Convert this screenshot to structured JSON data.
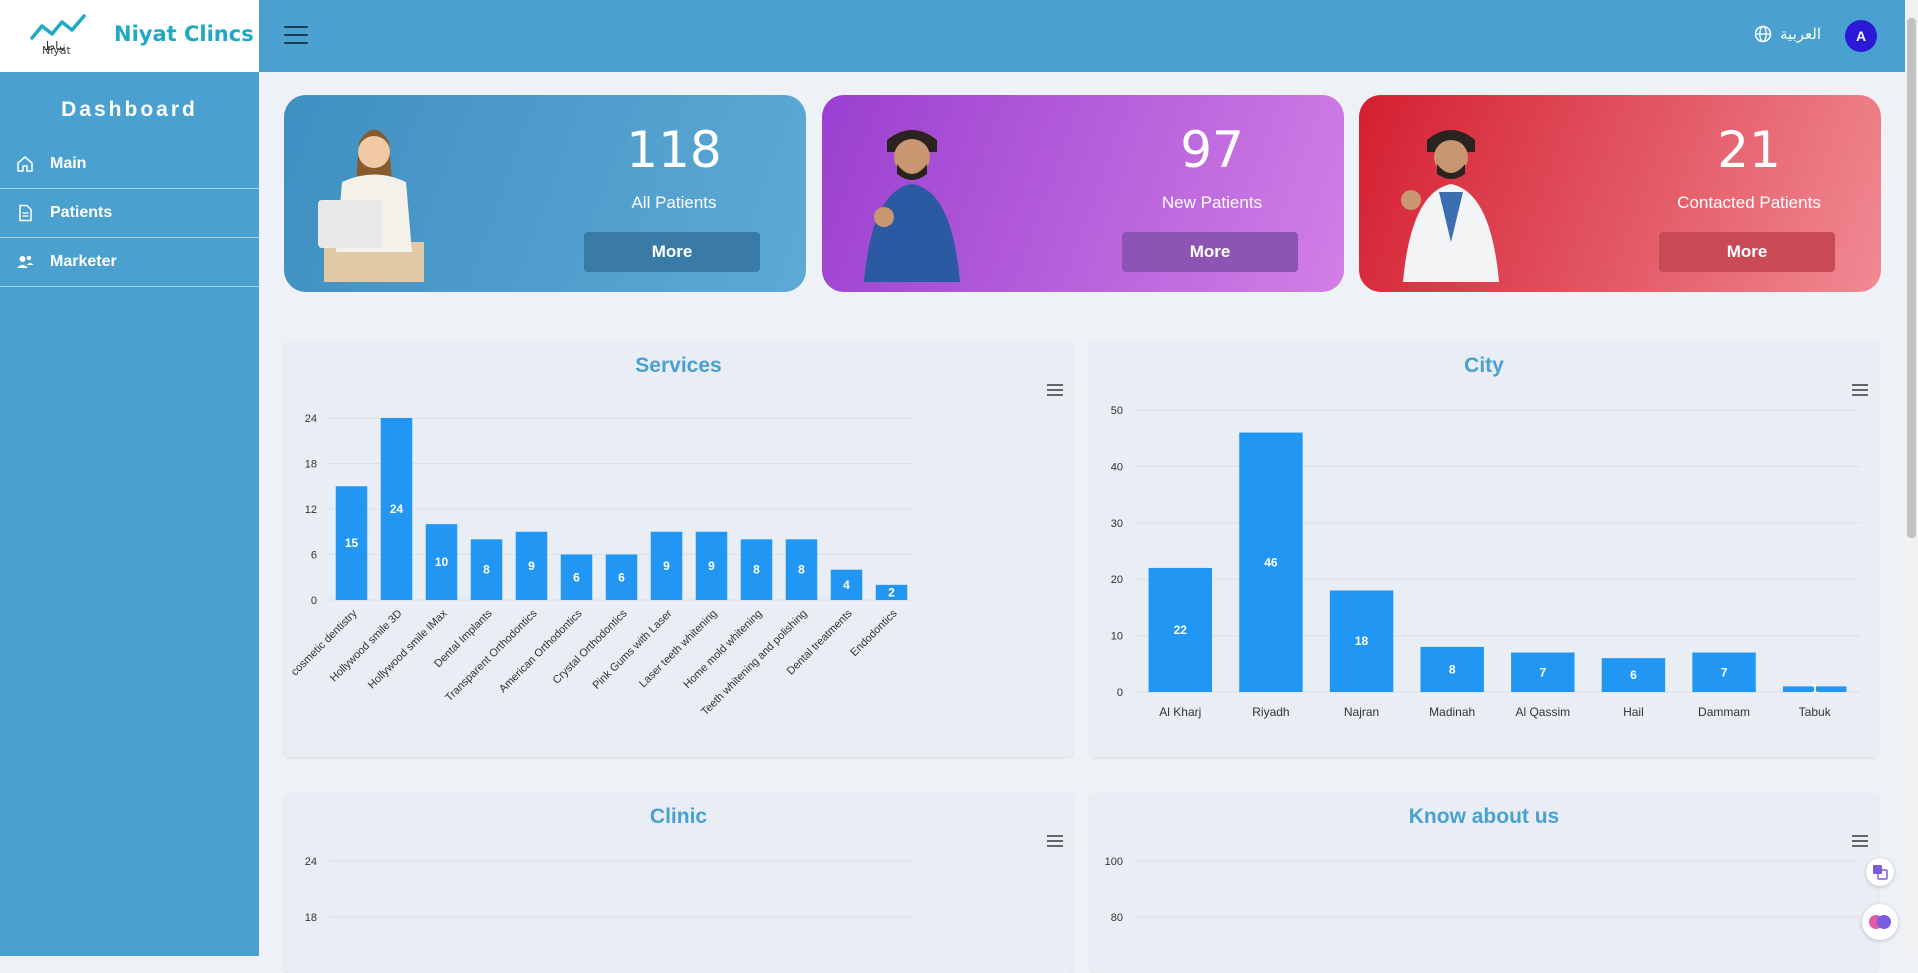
{
  "brand": {
    "name": "Niyat Clincs",
    "logo_sub": "Niyat",
    "logo_ar": "نياط"
  },
  "header": {
    "language": "العربية",
    "avatar_letter": "A"
  },
  "sidebar": {
    "title": "Dashboard",
    "items": [
      {
        "label": "Main",
        "icon": "home-icon"
      },
      {
        "label": "Patients",
        "icon": "document-icon"
      },
      {
        "label": "Marketer",
        "icon": "users-icon"
      }
    ]
  },
  "stats": [
    {
      "value": "118",
      "label": "All Patients",
      "button": "More",
      "color": "#4a97c6"
    },
    {
      "value": "97",
      "label": "New Patients",
      "button": "More",
      "color": "#b45fd8"
    },
    {
      "value": "21",
      "label": "Contacted Patients",
      "button": "More",
      "color": "#e23b47"
    }
  ],
  "chart_data": [
    {
      "type": "bar",
      "title": "Services",
      "categories": [
        "cosmetic dentistry",
        "Hollywood smile 3D",
        "Hollywood smile IMax",
        "Dental Implants",
        "Transparent Orthodontics",
        "American Orthodontics",
        "Crystal Orthodontics",
        "Pink Gums with Laser",
        "Laser teeth whitening",
        "Home mold whitening",
        "Teeth whitening and polishing",
        "Dental treatments",
        "Endodontics"
      ],
      "values": [
        15,
        24,
        10,
        8,
        9,
        6,
        6,
        9,
        9,
        8,
        8,
        4,
        2
      ],
      "yticks": [
        0,
        6,
        12,
        18,
        24
      ],
      "ylim": [
        0,
        24
      ],
      "color": "#2196f3"
    },
    {
      "type": "bar",
      "title": "City",
      "categories": [
        "Al Kharj",
        "Riyadh",
        "Najran",
        "Madinah",
        "Al Qassim",
        "Hail",
        "Dammam",
        "Tabuk"
      ],
      "values": [
        22,
        46,
        18,
        8,
        7,
        6,
        7,
        1
      ],
      "yticks": [
        0,
        10,
        20,
        30,
        40,
        50
      ],
      "ylim": [
        0,
        50
      ],
      "color": "#2196f3"
    },
    {
      "type": "bar",
      "title": "Clinic",
      "yticks": [
        18,
        24
      ],
      "color": "#2196f3"
    },
    {
      "type": "bar",
      "title": "Know about us",
      "yticks": [
        80,
        100
      ],
      "color": "#2196f3"
    }
  ]
}
